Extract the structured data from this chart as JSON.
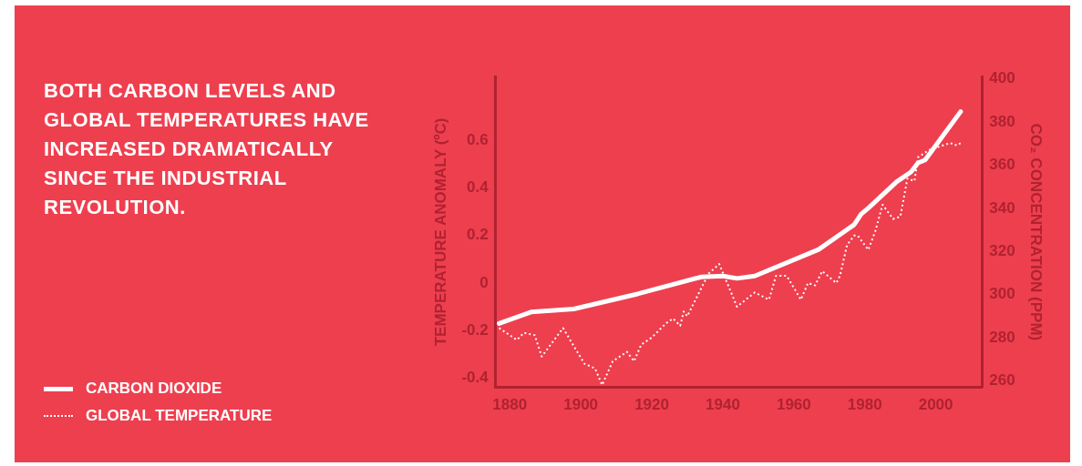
{
  "chart_data": {
    "type": "line",
    "title": "BOTH CARBON LEVELS AND GLOBAL TEMPERATURES HAVE INCREASED DRAMATICALLY SINCE THE INDUSTRIAL REVOLUTION.",
    "ylabel": "TEMPERATURE ANOMALY (ºC)",
    "y2label": "CO₂ CONCENTRATION (PPM)",
    "xlim": [
      1876,
      2013
    ],
    "xticks": [
      1880,
      1900,
      1920,
      1940,
      1960,
      1980,
      2000
    ],
    "ylim": [
      -0.44,
      0.87
    ],
    "yticks": [
      -0.4,
      -0.2,
      0,
      0.2,
      0.4,
      0.6
    ],
    "y2lim": [
      257,
      401
    ],
    "y2ticks": [
      260,
      280,
      300,
      320,
      340,
      360,
      380,
      400
    ],
    "grid": false,
    "legend": "bottom left",
    "marker": "none",
    "series": [
      {
        "name": "CARBON DIOXIDE",
        "color": "#ffffff",
        "axis": "y2",
        "line_style": "solid",
        "x": [
          1877,
          1886,
          1898,
          1916,
          1934,
          1940,
          1944,
          1949,
          1967,
          1977,
          1979,
          1981,
          1989,
          1993,
          1995,
          1997,
          2007
        ],
        "values": [
          286.6,
          291.9,
          293.3,
          300.3,
          308.2,
          308.6,
          307.5,
          308.6,
          320.9,
          332.4,
          337.3,
          340.1,
          352.3,
          356.8,
          361,
          362.4,
          384.8
        ]
      },
      {
        "name": "GLOBAL TEMPERATURE",
        "color": "#ffffff",
        "axis": "y",
        "line_style": "dotted",
        "x": [
          1877,
          1882,
          1884,
          1887,
          1889,
          1895,
          1901,
          1904,
          1906,
          1909,
          1913,
          1915,
          1917,
          1920,
          1924,
          1926,
          1928,
          1929,
          1930,
          1936,
          1939,
          1944,
          1949,
          1953,
          1955,
          1958,
          1962,
          1964,
          1966,
          1968,
          1972,
          1973,
          1975,
          1977,
          1978,
          1981,
          1983,
          1985,
          1988,
          1990,
          1992,
          1994,
          1995,
          1998,
          2002,
          2004,
          2006,
          2007
        ],
        "values": [
          -0.19,
          -0.24,
          -0.21,
          -0.22,
          -0.31,
          -0.19,
          -0.34,
          -0.36,
          -0.43,
          -0.33,
          -0.29,
          -0.33,
          -0.26,
          -0.23,
          -0.17,
          -0.15,
          -0.18,
          -0.12,
          -0.14,
          0.04,
          0.08,
          -0.1,
          -0.04,
          -0.07,
          0.03,
          0.03,
          -0.07,
          0,
          -0.01,
          0.05,
          0,
          0.03,
          0.16,
          0.2,
          0.2,
          0.14,
          0.22,
          0.33,
          0.27,
          0.28,
          0.44,
          0.43,
          0.53,
          0.56,
          0.58,
          0.59,
          0.58,
          0.59
        ]
      }
    ]
  }
}
